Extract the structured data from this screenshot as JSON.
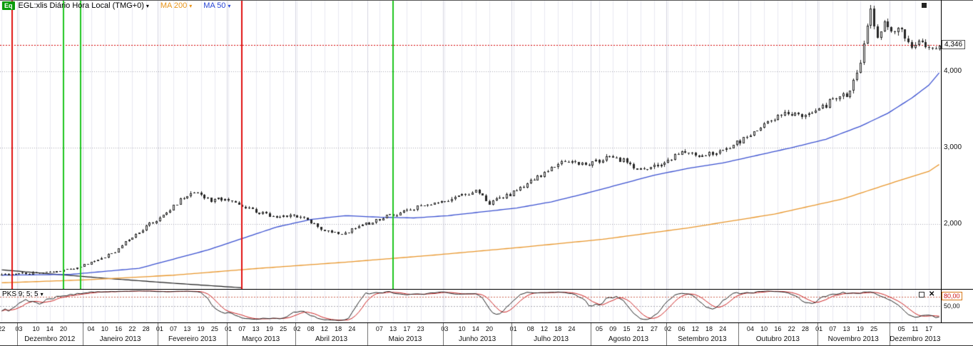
{
  "header": {
    "badge": "Eq",
    "title": "EGL:xlis Diário Hora Local (TMG+0)",
    "arrow": "▾",
    "ma200_label": "MA 200",
    "ma50_label": "MA 50"
  },
  "icons": {
    "close": "✕"
  },
  "colors": {
    "up": "#ffffff",
    "candle": "#262626",
    "ma200": "#e8962c",
    "ma50": "#3a50d0",
    "baseline": "#1a1a1a",
    "grid": "#e9e9f0",
    "grid_month": "#d5d5e0",
    "hgrid": "#a8a8b2",
    "stoch_k": "#222222",
    "stoch_d": "#cc2222",
    "stoch_level": "#cc6655",
    "badge_bg": "#0a9b0a",
    "ma200_text": "#e8941a",
    "ma50_text": "#2946d6"
  },
  "chart_data": {
    "type": "candlestick",
    "symbol": "EGL:xlis",
    "interval": "Diário",
    "title": "EGL:xlis Diário Hora Local (TMG+0)",
    "legend": [
      "MA 200",
      "MA 50"
    ],
    "grid": true,
    "total_days": 274,
    "y_axis": {
      "ylim": [
        1150,
        4935
      ],
      "ticks": [
        {
          "label": "4,000",
          "value": 4000
        },
        {
          "label": "3,000",
          "value": 3000
        },
        {
          "label": "2,000",
          "value": 2000
        }
      ],
      "last_price": {
        "label": "4,346",
        "value": 4346
      }
    },
    "y_gridlines": [
      2000,
      3000,
      4000
    ],
    "hlines": [
      {
        "value": 4346,
        "color": "#d40000",
        "style": "dotted"
      }
    ],
    "x_axis": {
      "months": [
        {
          "label": "",
          "days": 5,
          "ticks": [
            {
              "t": "22",
              "d": 0
            }
          ]
        },
        {
          "label": "Dezembro 2012",
          "days": 19,
          "ticks": [
            {
              "t": "03",
              "d": 0
            },
            {
              "t": "10",
              "d": 5
            },
            {
              "t": "14",
              "d": 9
            },
            {
              "t": "20",
              "d": 13
            }
          ]
        },
        {
          "label": "Janeiro 2013",
          "days": 22,
          "ticks": [
            {
              "t": "04",
              "d": 2
            },
            {
              "t": "10",
              "d": 6
            },
            {
              "t": "16",
              "d": 10
            },
            {
              "t": "22",
              "d": 14
            },
            {
              "t": "28",
              "d": 18
            }
          ]
        },
        {
          "label": "Fevereiro 2013",
          "days": 20,
          "ticks": [
            {
              "t": "01",
              "d": 0
            },
            {
              "t": "07",
              "d": 4
            },
            {
              "t": "13",
              "d": 8
            },
            {
              "t": "19",
              "d": 12
            },
            {
              "t": "25",
              "d": 16
            }
          ]
        },
        {
          "label": "Março 2013",
          "days": 20,
          "ticks": [
            {
              "t": "01",
              "d": 0
            },
            {
              "t": "07",
              "d": 4
            },
            {
              "t": "13",
              "d": 8
            },
            {
              "t": "19",
              "d": 12
            },
            {
              "t": "25",
              "d": 16
            }
          ]
        },
        {
          "label": "Abril 2013",
          "days": 21,
          "ticks": [
            {
              "t": "02",
              "d": 0
            },
            {
              "t": "08",
              "d": 4
            },
            {
              "t": "12",
              "d": 8
            },
            {
              "t": "18",
              "d": 12
            },
            {
              "t": "24",
              "d": 16
            }
          ]
        },
        {
          "label": "Maio 2013",
          "days": 22,
          "ticks": [
            {
              "t": "07",
              "d": 3
            },
            {
              "t": "13",
              "d": 7
            },
            {
              "t": "17",
              "d": 11
            },
            {
              "t": "23",
              "d": 15
            }
          ]
        },
        {
          "label": "Junho 2013",
          "days": 20,
          "ticks": [
            {
              "t": "03",
              "d": 0
            },
            {
              "t": "10",
              "d": 5
            },
            {
              "t": "14",
              "d": 9
            },
            {
              "t": "20",
              "d": 13
            }
          ]
        },
        {
          "label": "Julho 2013",
          "days": 23,
          "ticks": [
            {
              "t": "01",
              "d": 0
            },
            {
              "t": "08",
              "d": 5
            },
            {
              "t": "12",
              "d": 9
            },
            {
              "t": "18",
              "d": 13
            },
            {
              "t": "24",
              "d": 17
            }
          ]
        },
        {
          "label": "Agosto 2013",
          "days": 22,
          "ticks": [
            {
              "t": "05",
              "d": 2
            },
            {
              "t": "09",
              "d": 6
            },
            {
              "t": "15",
              "d": 10
            },
            {
              "t": "21",
              "d": 14
            },
            {
              "t": "27",
              "d": 18
            }
          ]
        },
        {
          "label": "Setembro 2013",
          "days": 21,
          "ticks": [
            {
              "t": "02",
              "d": 0
            },
            {
              "t": "06",
              "d": 4
            },
            {
              "t": "12",
              "d": 8
            },
            {
              "t": "18",
              "d": 12
            },
            {
              "t": "24",
              "d": 16
            }
          ]
        },
        {
          "label": "Outubro 2013",
          "days": 23,
          "ticks": [
            {
              "t": "04",
              "d": 3
            },
            {
              "t": "10",
              "d": 7
            },
            {
              "t": "16",
              "d": 11
            },
            {
              "t": "22",
              "d": 15
            },
            {
              "t": "28",
              "d": 19
            }
          ]
        },
        {
          "label": "Novembro 2013",
          "days": 21,
          "ticks": [
            {
              "t": "01",
              "d": 0
            },
            {
              "t": "07",
              "d": 4
            },
            {
              "t": "13",
              "d": 8
            },
            {
              "t": "19",
              "d": 12
            },
            {
              "t": "25",
              "d": 16
            }
          ]
        },
        {
          "label": "Dezembro 2013",
          "days": 15,
          "ticks": [
            {
              "t": "05",
              "d": 3
            },
            {
              "t": "11",
              "d": 7
            },
            {
              "t": "17",
              "d": 11
            }
          ]
        }
      ]
    },
    "close_anchors": [
      [
        0,
        1340
      ],
      [
        5,
        1350
      ],
      [
        10,
        1355
      ],
      [
        15,
        1370
      ],
      [
        18,
        1395
      ],
      [
        23,
        1450
      ],
      [
        28,
        1520
      ],
      [
        33,
        1640
      ],
      [
        38,
        1840
      ],
      [
        43,
        2000
      ],
      [
        48,
        2140
      ],
      [
        53,
        2360
      ],
      [
        57,
        2400
      ],
      [
        61,
        2310
      ],
      [
        65,
        2330
      ],
      [
        70,
        2240
      ],
      [
        75,
        2150
      ],
      [
        80,
        2090
      ],
      [
        85,
        2130
      ],
      [
        90,
        2020
      ],
      [
        95,
        1900
      ],
      [
        99,
        1850
      ],
      [
        103,
        1950
      ],
      [
        107,
        2010
      ],
      [
        111,
        2080
      ],
      [
        114,
        2120
      ],
      [
        119,
        2190
      ],
      [
        124,
        2250
      ],
      [
        129,
        2300
      ],
      [
        134,
        2380
      ],
      [
        138,
        2430
      ],
      [
        142,
        2280
      ],
      [
        146,
        2350
      ],
      [
        149,
        2420
      ],
      [
        154,
        2550
      ],
      [
        159,
        2700
      ],
      [
        164,
        2820
      ],
      [
        168,
        2770
      ],
      [
        172,
        2800
      ],
      [
        177,
        2870
      ],
      [
        182,
        2820
      ],
      [
        186,
        2700
      ],
      [
        191,
        2780
      ],
      [
        194,
        2850
      ],
      [
        199,
        2950
      ],
      [
        204,
        2890
      ],
      [
        209,
        2960
      ],
      [
        214,
        3060
      ],
      [
        219,
        3200
      ],
      [
        224,
        3380
      ],
      [
        229,
        3460
      ],
      [
        233,
        3380
      ],
      [
        238,
        3500
      ],
      [
        242,
        3620
      ],
      [
        246,
        3700
      ],
      [
        248,
        3850
      ],
      [
        250,
        4150
      ],
      [
        252,
        4650
      ],
      [
        253,
        4880
      ],
      [
        254,
        4600
      ],
      [
        255,
        4450
      ],
      [
        257,
        4650
      ],
      [
        259,
        4480
      ],
      [
        261,
        4600
      ],
      [
        263,
        4450
      ],
      [
        266,
        4300
      ],
      [
        268,
        4400
      ],
      [
        271,
        4300
      ],
      [
        273,
        4346
      ]
    ],
    "ma50_anchors": [
      [
        0,
        1330
      ],
      [
        20,
        1340
      ],
      [
        40,
        1420
      ],
      [
        60,
        1660
      ],
      [
        80,
        1960
      ],
      [
        90,
        2060
      ],
      [
        100,
        2110
      ],
      [
        110,
        2090
      ],
      [
        120,
        2080
      ],
      [
        130,
        2110
      ],
      [
        140,
        2160
      ],
      [
        150,
        2210
      ],
      [
        160,
        2290
      ],
      [
        170,
        2400
      ],
      [
        180,
        2520
      ],
      [
        190,
        2640
      ],
      [
        200,
        2730
      ],
      [
        210,
        2800
      ],
      [
        220,
        2900
      ],
      [
        230,
        3000
      ],
      [
        240,
        3110
      ],
      [
        250,
        3280
      ],
      [
        258,
        3450
      ],
      [
        265,
        3650
      ],
      [
        270,
        3820
      ],
      [
        273,
        3980
      ]
    ],
    "ma200_anchors": [
      [
        0,
        1230
      ],
      [
        25,
        1270
      ],
      [
        50,
        1330
      ],
      [
        75,
        1420
      ],
      [
        100,
        1500
      ],
      [
        125,
        1590
      ],
      [
        150,
        1690
      ],
      [
        175,
        1800
      ],
      [
        200,
        1950
      ],
      [
        225,
        2130
      ],
      [
        245,
        2330
      ],
      [
        260,
        2550
      ],
      [
        270,
        2690
      ],
      [
        273,
        2780
      ]
    ],
    "baseline_anchors": [
      [
        0,
        1400
      ],
      [
        15,
        1345
      ],
      [
        30,
        1290
      ],
      [
        50,
        1225
      ],
      [
        70,
        1165
      ]
    ],
    "vlines": [
      {
        "day": 3,
        "color": "#e01010"
      },
      {
        "day": 18,
        "color": "#1ec41e"
      },
      {
        "day": 23,
        "color": "#1ec41e"
      },
      {
        "day": 70,
        "color": "#e01010"
      },
      {
        "day": 114,
        "color": "#1ec41e"
      }
    ],
    "stochastic": {
      "label": "PKS 9; 5; 5",
      "params": [
        9,
        5,
        5
      ],
      "range": [
        0,
        100
      ],
      "levels": [
        {
          "label": "80,00",
          "value": 80,
          "boxed": true
        },
        {
          "label": "50,00",
          "value": 50,
          "boxed": false
        }
      ]
    }
  }
}
